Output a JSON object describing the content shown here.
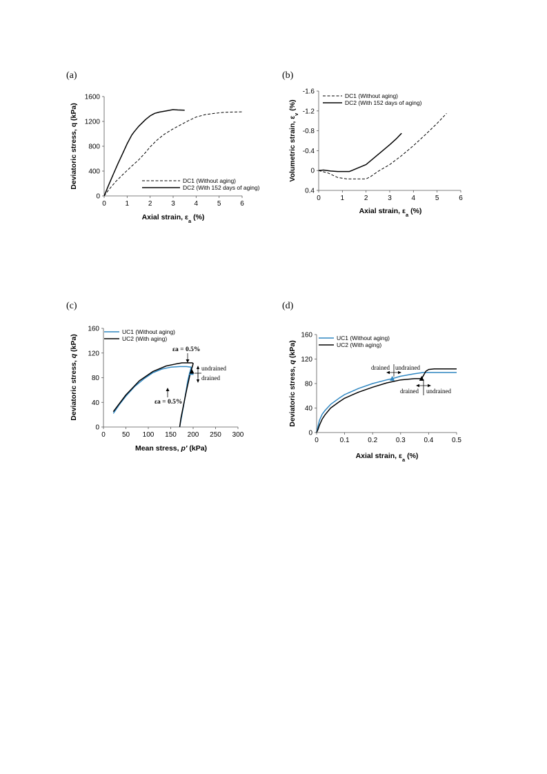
{
  "chart_data": [
    {
      "panel": "(a)",
      "type": "line",
      "xlabel": "Axial strain, εa (%)",
      "ylabel": "Deviatoric stress, q (kPa)",
      "xlim": [
        0,
        6
      ],
      "ylim": [
        0,
        1600
      ],
      "xticks": [
        0,
        1,
        2,
        3,
        4,
        5,
        6
      ],
      "yticks": [
        0,
        400,
        800,
        1200,
        1600
      ],
      "legend_position": "bottom-right",
      "series": [
        {
          "name": "DC1 (Without aging)",
          "style": "dashed",
          "color": "#000000",
          "x": [
            0,
            0.2,
            0.5,
            0.8,
            1.0,
            1.2,
            1.5,
            1.8,
            2.0,
            2.3,
            2.6,
            3.0,
            3.3,
            3.6,
            4.0,
            4.4,
            4.8,
            5.2,
            5.5,
            6.0
          ],
          "y": [
            0,
            100,
            230,
            340,
            410,
            480,
            580,
            700,
            790,
            900,
            990,
            1080,
            1140,
            1200,
            1270,
            1310,
            1330,
            1345,
            1350,
            1355
          ]
        },
        {
          "name": "DC2 (With 152 days of aging)",
          "style": "solid",
          "color": "#000000",
          "x": [
            0,
            0.2,
            0.4,
            0.6,
            0.8,
            1.0,
            1.2,
            1.3,
            1.5,
            1.8,
            2.0,
            2.2,
            2.4,
            2.7,
            3.0,
            3.2,
            3.5
          ],
          "y": [
            0,
            180,
            350,
            520,
            680,
            840,
            980,
            1030,
            1120,
            1230,
            1290,
            1330,
            1350,
            1370,
            1390,
            1385,
            1380
          ]
        }
      ]
    },
    {
      "panel": "(b)",
      "type": "line",
      "xlabel": "Axial strain, εa (%)",
      "ylabel": "Volumetric strain, εv (%)",
      "xlim": [
        0,
        6
      ],
      "ylim": [
        0.4,
        -1.6
      ],
      "xticks": [
        0,
        1,
        2,
        3,
        4,
        5,
        6
      ],
      "yticks": [
        -1.6,
        -1.2,
        -0.8,
        -0.4,
        0,
        0.4
      ],
      "legend_position": "top-left",
      "series": [
        {
          "name": "DC1 (Without aging)",
          "style": "dashed",
          "color": "#000000",
          "x": [
            0,
            0.4,
            0.8,
            1.2,
            1.6,
            2.0,
            2.2,
            2.5,
            3.0,
            3.5,
            4.0,
            4.5,
            5.0,
            5.4
          ],
          "y": [
            0,
            0.05,
            0.14,
            0.17,
            0.17,
            0.17,
            0.12,
            0.02,
            -0.12,
            -0.3,
            -0.5,
            -0.72,
            -0.95,
            -1.15
          ]
        },
        {
          "name": "DC2 (With 152 days of aging)",
          "style": "solid",
          "color": "#000000",
          "x": [
            0,
            0.2,
            0.5,
            0.8,
            1.0,
            1.3,
            1.6,
            2.0,
            2.3,
            2.6,
            3.0,
            3.3,
            3.5
          ],
          "y": [
            0,
            -0.01,
            0.01,
            0.02,
            0.02,
            0.02,
            -0.04,
            -0.12,
            -0.24,
            -0.36,
            -0.52,
            -0.65,
            -0.75
          ]
        }
      ]
    },
    {
      "panel": "(c)",
      "type": "line",
      "xlabel": "Mean stress, p′ (kPa)",
      "ylabel": "Deviatoric stress, q (kPa)",
      "xlim": [
        0,
        300
      ],
      "ylim": [
        0,
        160
      ],
      "xticks": [
        0,
        50,
        100,
        150,
        200,
        250,
        300
      ],
      "yticks": [
        0,
        40,
        80,
        120,
        160
      ],
      "legend_position": "top-left",
      "series": [
        {
          "name": "UC1 (Without aging)",
          "style": "solid",
          "color": "#2e86c1",
          "x": [
            170,
            175,
            180,
            185,
            188,
            192,
            195,
            196,
            185,
            170,
            150,
            130,
            110,
            90,
            70,
            50,
            35,
            22
          ],
          "y": [
            0,
            20,
            40,
            62,
            75,
            87,
            95,
            97,
            98,
            98,
            97,
            94,
            88,
            78,
            66,
            50,
            36,
            22
          ]
        },
        {
          "name": "UC2 (With aging)",
          "style": "solid",
          "color": "#000000",
          "x": [
            170,
            173,
            177,
            182,
            186,
            190,
            193,
            195,
            197,
            199,
            200,
            198,
            190,
            175,
            160,
            140,
            110,
            80,
            50,
            22
          ],
          "y": [
            0,
            15,
            30,
            48,
            62,
            75,
            85,
            90,
            95,
            100,
            103,
            104,
            104,
            104,
            102,
            99,
            90,
            75,
            52,
            25
          ]
        }
      ],
      "annotations": [
        {
          "text": "εa = 0.5%",
          "for": "UC2",
          "x": 190,
          "y": 104
        },
        {
          "text": "εa = 0.5%",
          "for": "UC1",
          "x": 145,
          "y": 97
        },
        {
          "text": "undrained"
        },
        {
          "text": "drained"
        }
      ],
      "markers": [
        {
          "series": "UC1",
          "shape": "triangle",
          "x": 196,
          "y": 88,
          "color": "#2e86c1"
        },
        {
          "series": "UC2",
          "shape": "triangle",
          "x": 197,
          "y": 90,
          "color": "#000000"
        }
      ]
    },
    {
      "panel": "(d)",
      "type": "line",
      "xlabel": "Axial strain, εa (%)",
      "ylabel": "Deviatoric stress, q (kPa)",
      "xlim": [
        0,
        0.5
      ],
      "ylim": [
        0,
        160
      ],
      "xticks": [
        0,
        0.1,
        0.2,
        0.3,
        0.4,
        0.5
      ],
      "yticks": [
        0,
        40,
        80,
        120,
        160
      ],
      "legend_position": "top-left",
      "series": [
        {
          "name": "UC1 (Without aging)",
          "style": "solid",
          "color": "#2e86c1",
          "x": [
            0,
            0.005,
            0.01,
            0.02,
            0.03,
            0.05,
            0.08,
            0.1,
            0.15,
            0.2,
            0.25,
            0.27,
            0.3,
            0.35,
            0.38,
            0.4,
            0.45,
            0.5
          ],
          "y": [
            0,
            10,
            20,
            30,
            36,
            46,
            56,
            62,
            72,
            80,
            86,
            88,
            92,
            96,
            98,
            98,
            98,
            98
          ]
        },
        {
          "name": "UC2 (With aging)",
          "style": "solid",
          "color": "#000000",
          "x": [
            0,
            0.005,
            0.01,
            0.02,
            0.03,
            0.05,
            0.08,
            0.1,
            0.15,
            0.2,
            0.25,
            0.3,
            0.35,
            0.375,
            0.38,
            0.39,
            0.4,
            0.42,
            0.45,
            0.5
          ],
          "y": [
            0,
            5,
            12,
            22,
            29,
            40,
            50,
            56,
            66,
            74,
            81,
            86,
            88,
            88,
            92,
            100,
            103,
            104,
            104,
            104
          ]
        }
      ],
      "annotations": [
        {
          "text": "drained"
        },
        {
          "text": "undrained"
        },
        {
          "text": "drained"
        },
        {
          "text": "undrained"
        }
      ],
      "markers": [
        {
          "series": "UC1",
          "shape": "triangle",
          "x": 0.27,
          "y": 88,
          "color": "#2e86c1"
        },
        {
          "series": "UC2",
          "shape": "triangle",
          "x": 0.375,
          "y": 88,
          "color": "#000000"
        }
      ]
    }
  ],
  "panels": {
    "a": {
      "label": "(a)",
      "ylabel_main": "Deviatoric stress, q (kPa)",
      "xlabel_main": "Axial strain, ε",
      "xlabel_sub": "a",
      "xlabel_tail": " (%)"
    },
    "b": {
      "label": "(b)",
      "ylabel_main": "Volumetric strain, ε",
      "ylabel_sub": "v",
      "ylabel_tail": " (%)",
      "xlabel_main": "Axial strain, ε",
      "xlabel_sub": "a",
      "xlabel_tail": " (%)"
    },
    "c": {
      "label": "(c)",
      "ylabel_main": "Deviatoric stress, ",
      "ylabel_ital": "q",
      "ylabel_tail": " (kPa)",
      "xlabel_main": "Mean stress, ",
      "xlabel_ital": "p′",
      "xlabel_tail": " (kPa)"
    },
    "d": {
      "label": "(d)",
      "ylabel_main": "Deviatoric stress, ",
      "ylabel_ital": "q",
      "ylabel_tail": " (kPa)",
      "xlabel_main": "Axial strain, ε",
      "xlabel_sub": "a",
      "xlabel_tail": " (%)"
    }
  },
  "annotation_text": {
    "c_eps_top": "εa = 0.5%",
    "c_eps_bottom": "εa = 0.5%",
    "c_undrained": "undrained",
    "c_drained": "drained",
    "d_drained_top": "drained",
    "d_undrained_top": "undrained",
    "d_drained_bottom": "drained",
    "d_undrained_bottom": "undrained"
  },
  "colors": {
    "uc1": "#2e86c1",
    "black": "#000000"
  }
}
